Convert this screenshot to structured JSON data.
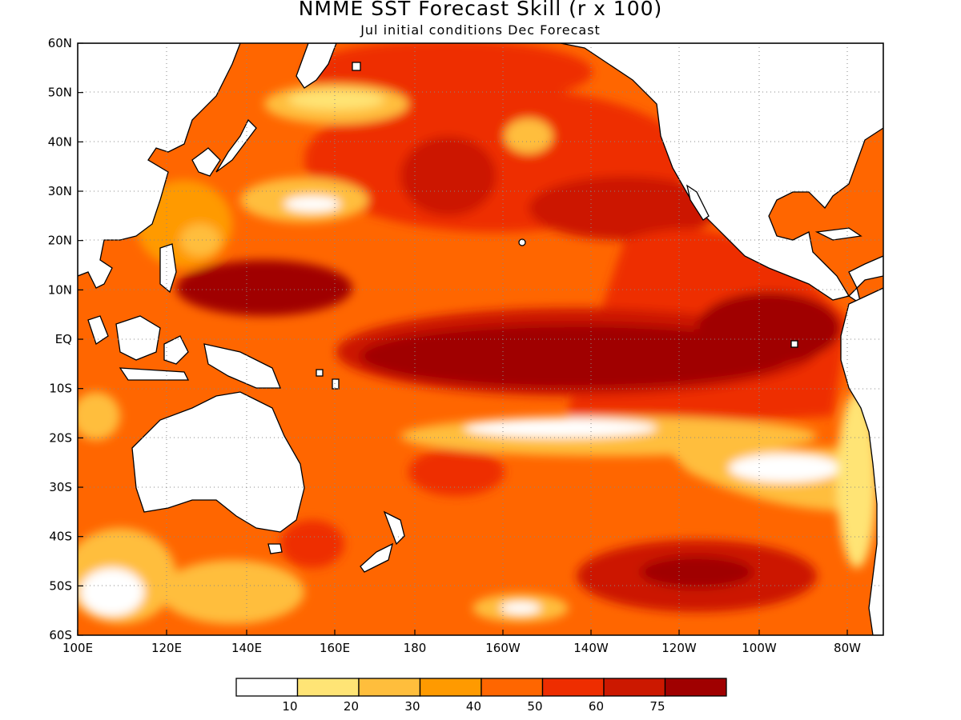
{
  "title": "NMME SST Forecast Skill (r x 100)",
  "subtitle": "Jul initial conditions  Dec Forecast",
  "map": {
    "lat_labels": [
      "60N",
      "50N",
      "40N",
      "30N",
      "20N",
      "10N",
      "EQ",
      "10S",
      "20S",
      "30S",
      "40S",
      "50S",
      "60S"
    ],
    "lon_labels": [
      "100E",
      "120E",
      "140E",
      "160E",
      "180",
      "160W",
      "140W",
      "120W",
      "100W",
      "80W"
    ],
    "grid": "dotted"
  },
  "legend": {
    "colors": [
      "#ffffff",
      "#ffe475",
      "#ffbe3c",
      "#ff9a00",
      "#ff6600",
      "#ee2d00",
      "#cc1800",
      "#a00000"
    ],
    "labels": [
      "10",
      "20",
      "30",
      "40",
      "50",
      "60",
      "75"
    ]
  }
}
